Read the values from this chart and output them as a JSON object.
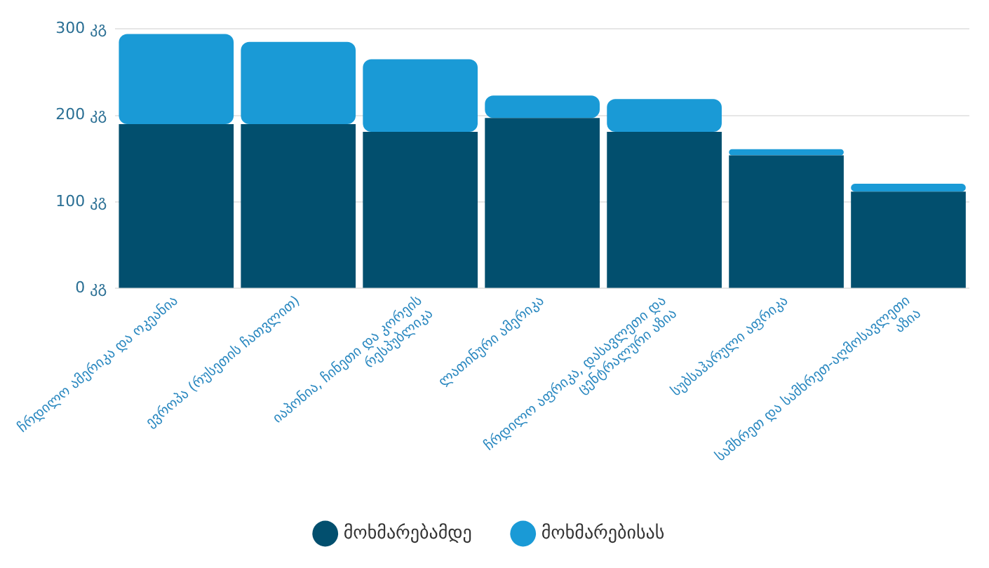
{
  "chart_data": {
    "type": "bar",
    "stacked": true,
    "categories": [
      "ჩრდილო ამერიკა და ოკეანია",
      "ევროპა (რუსეთის ჩათვლით)",
      "იაპონია, ჩინეთი და კორეის რესპუბლიკა",
      "ლათინური ამერიკა",
      "ჩრდილო აფრიკა, დასავლეთი და ცენტრალური აზია",
      "სუბსაჰარული აფრიკა",
      "სამხრეთ და სამხრეთ-აღმოსავლეთი აზია"
    ],
    "series": [
      {
        "name": "მოხმარებამდე",
        "color": "#024f6e",
        "values": [
          190,
          190,
          181,
          197,
          181,
          154,
          112
        ]
      },
      {
        "name": "მოხმარებისას",
        "color": "#1a9ad6",
        "values": [
          104,
          95,
          84,
          26,
          38,
          7,
          9
        ]
      }
    ],
    "ylim": [
      0,
      300
    ],
    "yticks": [
      {
        "value": 0,
        "label": "0 კგ"
      },
      {
        "value": 100,
        "label": "100 კგ"
      },
      {
        "value": 200,
        "label": "200 კგ"
      },
      {
        "value": 300,
        "label": "300 კგ"
      }
    ],
    "grid": "y",
    "legend": "bottom"
  }
}
